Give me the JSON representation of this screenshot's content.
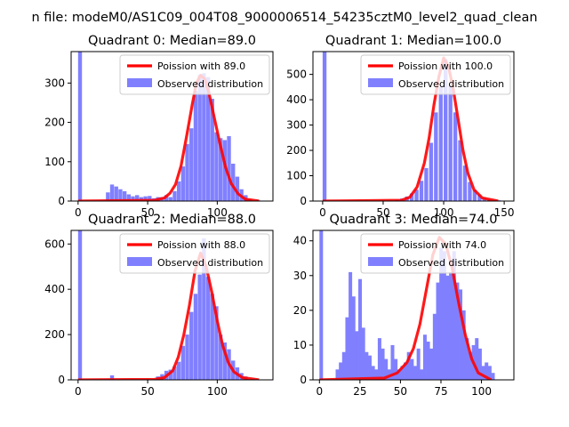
{
  "suptitle": "n file: modeM0/AS1C09_004T08_9000006514_54235cztM0_level2_quad_clean",
  "colors": {
    "hist": "#8080ff",
    "poisson": "#ff0000",
    "axes": "#000000"
  },
  "chart_data": [
    {
      "type": "bar+line",
      "title": "Quadrant 0: Median=89.0",
      "xlim": [
        -5,
        140
      ],
      "ylim": [
        0,
        380
      ],
      "xticks": [
        0,
        50,
        100
      ],
      "yticks": [
        0,
        100,
        200,
        300
      ],
      "legend": [
        "Poission with 89.0",
        "Observed distribution"
      ],
      "legend_placement": "top-right",
      "median": 89,
      "bin_width": 2.8,
      "hist": [
        [
          0,
          380
        ],
        [
          20,
          22
        ],
        [
          23,
          42
        ],
        [
          26,
          37
        ],
        [
          29,
          30
        ],
        [
          32,
          25
        ],
        [
          35,
          17
        ],
        [
          38,
          12
        ],
        [
          41,
          15
        ],
        [
          44,
          10
        ],
        [
          47,
          12
        ],
        [
          50,
          13
        ],
        [
          53,
          7
        ],
        [
          56,
          10
        ],
        [
          59,
          10
        ],
        [
          62,
          15
        ],
        [
          65,
          10
        ],
        [
          68,
          25
        ],
        [
          71,
          50
        ],
        [
          74,
          88
        ],
        [
          77,
          145
        ],
        [
          80,
          185
        ],
        [
          83,
          280
        ],
        [
          86,
          320
        ],
        [
          89,
          325
        ],
        [
          92,
          315
        ],
        [
          95,
          260
        ],
        [
          98,
          175
        ],
        [
          101,
          160
        ],
        [
          104,
          155
        ],
        [
          107,
          165
        ],
        [
          110,
          95
        ],
        [
          113,
          62
        ],
        [
          116,
          30
        ],
        [
          119,
          15
        ],
        [
          122,
          5
        ],
        [
          128,
          2
        ]
      ],
      "poisson_curve": [
        [
          0,
          0
        ],
        [
          55,
          2
        ],
        [
          62,
          8
        ],
        [
          66,
          20
        ],
        [
          70,
          42
        ],
        [
          74,
          90
        ],
        [
          78,
          165
        ],
        [
          82,
          245
        ],
        [
          85,
          300
        ],
        [
          88,
          320
        ],
        [
          91,
          310
        ],
        [
          94,
          275
        ],
        [
          98,
          210
        ],
        [
          102,
          145
        ],
        [
          106,
          85
        ],
        [
          110,
          45
        ],
        [
          115,
          18
        ],
        [
          120,
          5
        ],
        [
          130,
          0
        ]
      ]
    },
    {
      "type": "bar+line",
      "title": "Quadrant 1: Median=100.0",
      "xlim": [
        -8,
        158
      ],
      "ylim": [
        0,
        590
      ],
      "xticks": [
        0,
        50,
        100,
        150
      ],
      "yticks": [
        0,
        100,
        200,
        300,
        400,
        500
      ],
      "legend": [
        "Poission with 100.0",
        "Observed distribution"
      ],
      "legend_placement": "top-right",
      "median": 100,
      "bin_width": 3.2,
      "hist": [
        [
          0,
          590
        ],
        [
          60,
          5
        ],
        [
          64,
          10
        ],
        [
          68,
          18
        ],
        [
          72,
          30
        ],
        [
          76,
          45
        ],
        [
          80,
          80
        ],
        [
          84,
          130
        ],
        [
          88,
          230
        ],
        [
          92,
          350
        ],
        [
          96,
          450
        ],
        [
          100,
          560
        ],
        [
          104,
          455
        ],
        [
          108,
          350
        ],
        [
          112,
          240
        ],
        [
          116,
          140
        ],
        [
          120,
          75
        ],
        [
          124,
          45
        ],
        [
          128,
          25
        ],
        [
          132,
          15
        ],
        [
          136,
          8
        ],
        [
          140,
          5
        ],
        [
          144,
          3
        ]
      ],
      "poisson_curve": [
        [
          0,
          0
        ],
        [
          65,
          3
        ],
        [
          72,
          15
        ],
        [
          78,
          55
        ],
        [
          84,
          150
        ],
        [
          88,
          250
        ],
        [
          92,
          380
        ],
        [
          96,
          490
        ],
        [
          100,
          565
        ],
        [
          104,
          530
        ],
        [
          108,
          440
        ],
        [
          112,
          320
        ],
        [
          116,
          200
        ],
        [
          120,
          110
        ],
        [
          125,
          45
        ],
        [
          132,
          12
        ],
        [
          145,
          0
        ]
      ]
    },
    {
      "type": "bar+line",
      "title": "Quadrant 2: Median=88.0",
      "xlim": [
        -5,
        140
      ],
      "ylim": [
        0,
        660
      ],
      "xticks": [
        0,
        50,
        100
      ],
      "yticks": [
        0,
        200,
        400,
        600
      ],
      "legend": [
        "Poission with 88.0",
        "Observed distribution"
      ],
      "legend_placement": "top-right",
      "median": 88,
      "bin_width": 2.8,
      "hist": [
        [
          0,
          660
        ],
        [
          23,
          20
        ],
        [
          56,
          15
        ],
        [
          59,
          25
        ],
        [
          62,
          40
        ],
        [
          65,
          45
        ],
        [
          68,
          60
        ],
        [
          71,
          80
        ],
        [
          74,
          150
        ],
        [
          77,
          200
        ],
        [
          80,
          300
        ],
        [
          83,
          380
        ],
        [
          86,
          465
        ],
        [
          89,
          625
        ],
        [
          92,
          455
        ],
        [
          95,
          380
        ],
        [
          98,
          325
        ],
        [
          101,
          200
        ],
        [
          104,
          165
        ],
        [
          107,
          135
        ],
        [
          110,
          85
        ],
        [
          113,
          55
        ],
        [
          116,
          30
        ],
        [
          119,
          15
        ],
        [
          124,
          5
        ]
      ],
      "poisson_curve": [
        [
          0,
          0
        ],
        [
          55,
          2
        ],
        [
          62,
          10
        ],
        [
          68,
          40
        ],
        [
          72,
          100
        ],
        [
          76,
          200
        ],
        [
          80,
          330
        ],
        [
          84,
          480
        ],
        [
          88,
          560
        ],
        [
          92,
          500
        ],
        [
          96,
          390
        ],
        [
          100,
          260
        ],
        [
          104,
          150
        ],
        [
          108,
          75
        ],
        [
          112,
          35
        ],
        [
          118,
          10
        ],
        [
          130,
          0
        ]
      ]
    },
    {
      "type": "bar+line",
      "title": "Quadrant 3: Median=74.0",
      "xlim": [
        -4,
        120
      ],
      "ylim": [
        0,
        43
      ],
      "xticks": [
        0,
        25,
        50,
        75,
        100
      ],
      "yticks": [
        0,
        10,
        20,
        30,
        40
      ],
      "legend": [
        "Poission with 74.0",
        "Observed distribution"
      ],
      "legend_placement": "top-right",
      "median": 74,
      "bin_width": 2.2,
      "hist": [
        [
          0,
          43
        ],
        [
          10,
          3
        ],
        [
          12,
          5
        ],
        [
          14,
          8
        ],
        [
          16,
          18
        ],
        [
          18,
          31
        ],
        [
          20,
          24
        ],
        [
          22,
          14
        ],
        [
          24,
          29
        ],
        [
          26,
          15
        ],
        [
          28,
          8
        ],
        [
          30,
          7
        ],
        [
          32,
          4
        ],
        [
          34,
          3
        ],
        [
          36,
          12
        ],
        [
          38,
          9
        ],
        [
          40,
          6
        ],
        [
          42,
          3
        ],
        [
          44,
          10
        ],
        [
          46,
          6
        ],
        [
          48,
          3
        ],
        [
          50,
          4
        ],
        [
          52,
          5
        ],
        [
          54,
          8
        ],
        [
          56,
          6
        ],
        [
          58,
          4
        ],
        [
          60,
          9
        ],
        [
          62,
          3
        ],
        [
          64,
          13
        ],
        [
          66,
          11
        ],
        [
          68,
          9
        ],
        [
          70,
          19
        ],
        [
          72,
          28
        ],
        [
          74,
          38
        ],
        [
          76,
          37
        ],
        [
          78,
          30
        ],
        [
          80,
          31
        ],
        [
          82,
          37
        ],
        [
          84,
          28
        ],
        [
          86,
          26
        ],
        [
          88,
          20
        ],
        [
          90,
          12
        ],
        [
          92,
          8
        ],
        [
          94,
          10
        ],
        [
          96,
          12
        ],
        [
          98,
          9
        ],
        [
          100,
          4
        ],
        [
          102,
          5
        ],
        [
          104,
          4
        ],
        [
          106,
          2
        ]
      ],
      "poisson_curve": [
        [
          0,
          0
        ],
        [
          40,
          0.5
        ],
        [
          48,
          2
        ],
        [
          54,
          5
        ],
        [
          58,
          9
        ],
        [
          62,
          16
        ],
        [
          66,
          26
        ],
        [
          70,
          36
        ],
        [
          74,
          41
        ],
        [
          78,
          39
        ],
        [
          82,
          32
        ],
        [
          86,
          22
        ],
        [
          90,
          13
        ],
        [
          94,
          6
        ],
        [
          98,
          2
        ],
        [
          106,
          0
        ]
      ]
    }
  ]
}
